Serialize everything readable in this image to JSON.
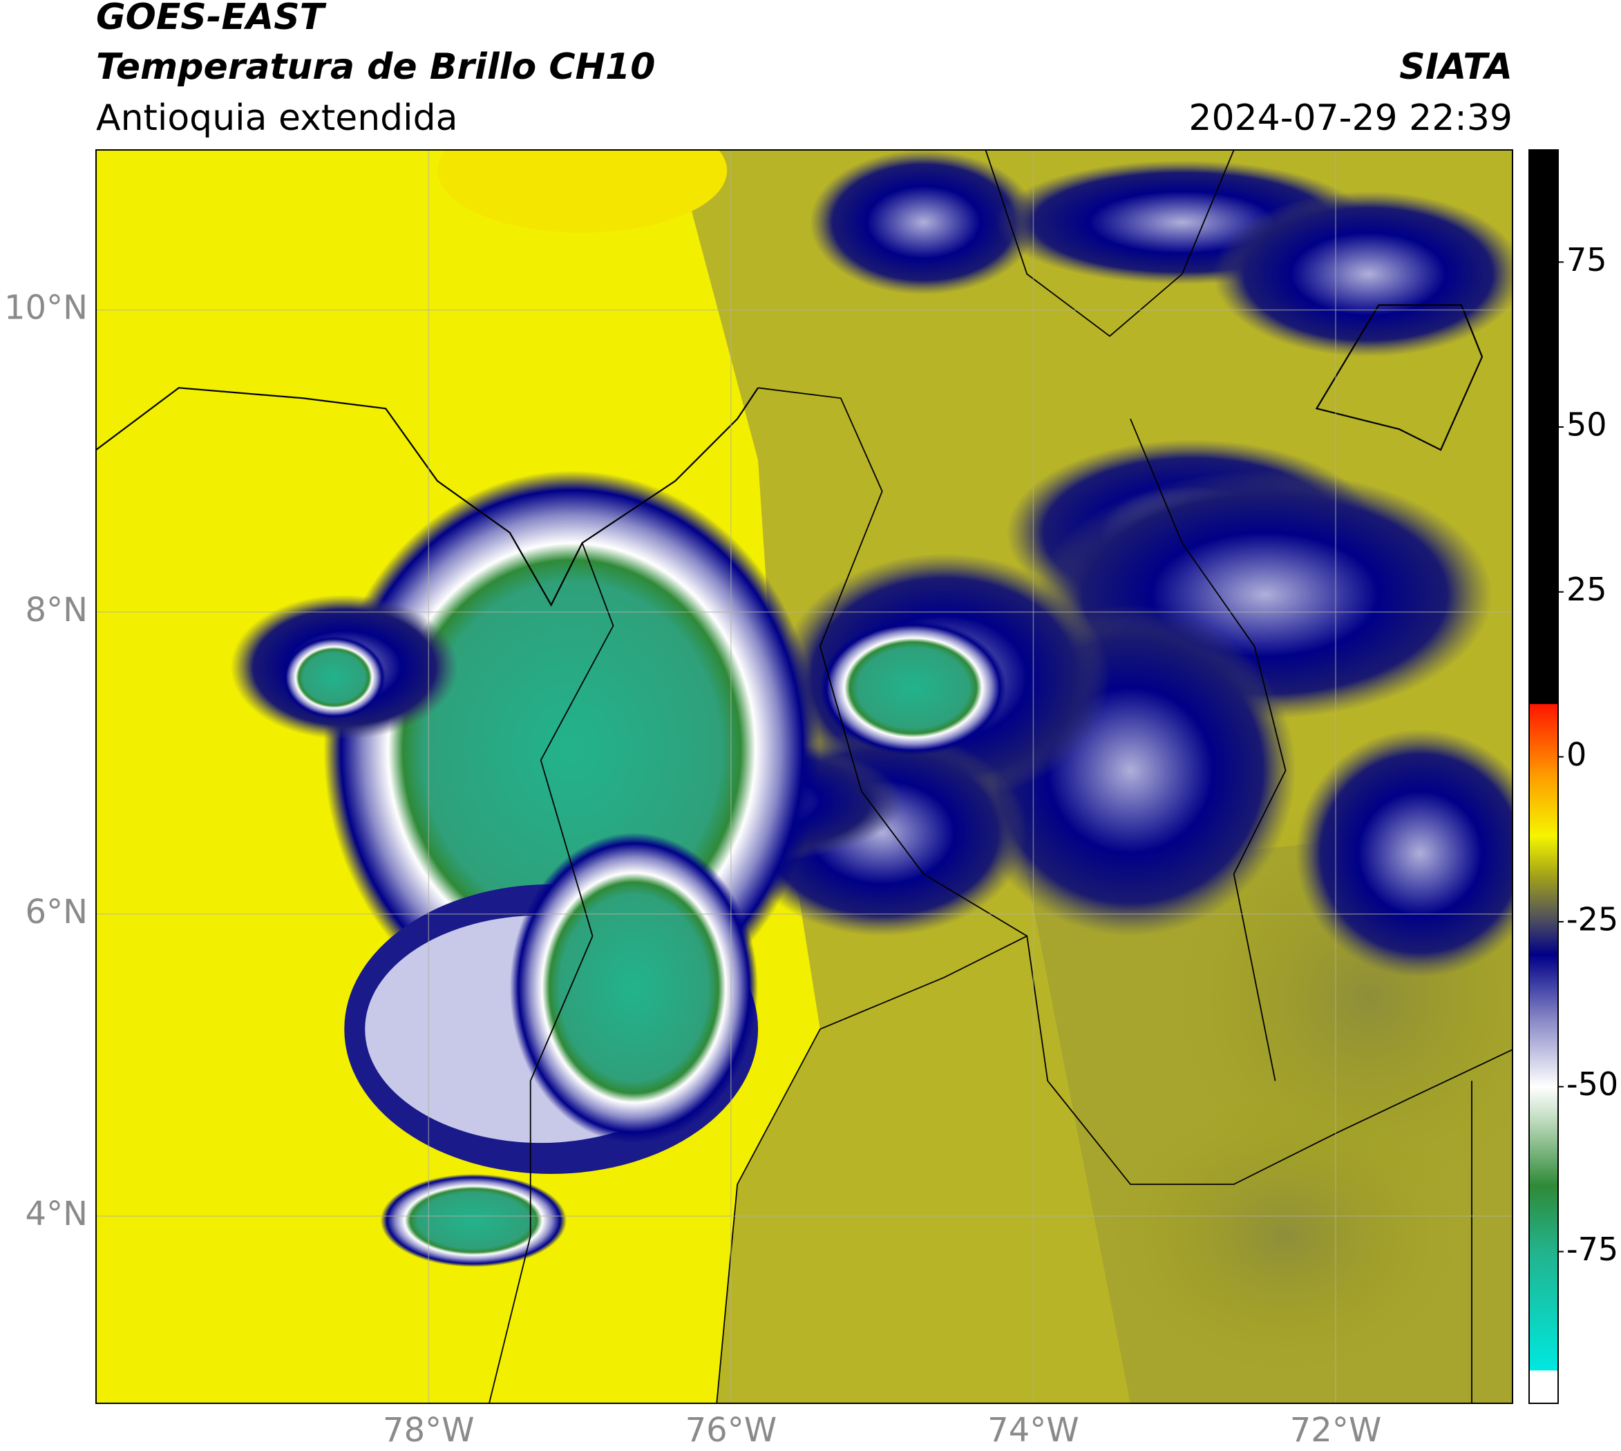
{
  "header": {
    "satellite": "GOES-EAST",
    "title": "Temperatura de Brillo CH10",
    "region": "Antioquia extendida",
    "agency": "SIATA",
    "datetime": "2024-07-29 22:39"
  },
  "map": {
    "xlim": [
      -80.2,
      -70.83
    ],
    "ylim": [
      2.76,
      11.06
    ],
    "grid": true,
    "xticks": [
      {
        "value": -78,
        "label": "78°W"
      },
      {
        "value": -76,
        "label": "76°W"
      },
      {
        "value": -74,
        "label": "74°W"
      },
      {
        "value": -72,
        "label": "72°W"
      }
    ],
    "yticks": [
      {
        "value": 4,
        "label": "4°N"
      },
      {
        "value": 6,
        "label": "6°N"
      },
      {
        "value": 8,
        "label": "8°N"
      },
      {
        "value": 10,
        "label": "10°N"
      }
    ]
  },
  "colorbar": {
    "lim": [
      -98,
      92
    ],
    "ticks": [
      75,
      50,
      25,
      0,
      -25,
      -50,
      -75
    ],
    "stops": [
      {
        "value": -98,
        "color": "#ffffff"
      },
      {
        "value": -93,
        "color": "#ffffff"
      },
      {
        "value": -93,
        "color": "#00e8e0"
      },
      {
        "value": -75,
        "color": "#22b38c"
      },
      {
        "value": -65,
        "color": "#2f8a38"
      },
      {
        "value": -55,
        "color": "#c0dcc0"
      },
      {
        "value": -50,
        "color": "#ffffff"
      },
      {
        "value": -40,
        "color": "#8a8ac8"
      },
      {
        "value": -30,
        "color": "#000088"
      },
      {
        "value": -25,
        "color": "#4a4a62"
      },
      {
        "value": -18,
        "color": "#a3a31a"
      },
      {
        "value": -12,
        "color": "#f5f500"
      },
      {
        "value": -3,
        "color": "#ff9d00"
      },
      {
        "value": 8,
        "color": "#ff1500"
      },
      {
        "value": 8,
        "color": "#000000"
      },
      {
        "value": 92,
        "color": "#000000"
      }
    ]
  }
}
